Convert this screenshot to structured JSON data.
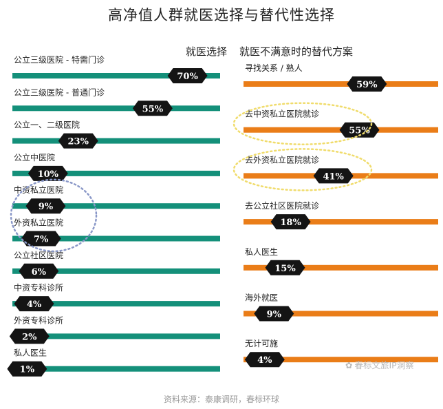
{
  "title": "高净值人群就医选择与替代性选择",
  "source": "资料来源：泰康调研，春标环球",
  "watermark": "春标文旅IP洞察",
  "colors": {
    "left_bar": "#14907a",
    "right_bar": "#ea7d18",
    "badge": "#141414",
    "badge_text": "#ffffff",
    "highlight_blue": "#8a98c8",
    "highlight_yellow": "#f0dc6c"
  },
  "chart_data": [
    {
      "type": "bar",
      "title": "就医选择",
      "categories": [
        "公立三级医院 - 特需门诊",
        "公立三级医院 - 普通门诊",
        "公立一、二级医院",
        "公立中医院",
        "中资私立医院",
        "外资私立医院",
        "公立社区医院",
        "中资专科诊所",
        "外资专科诊所",
        "私人医生"
      ],
      "values": [
        70,
        55,
        23,
        10,
        9,
        7,
        6,
        4,
        2,
        1
      ],
      "value_labels": [
        "70%",
        "55%",
        "23%",
        "10%",
        "9%",
        "7%",
        "6%",
        "4%",
        "2%",
        "1%"
      ],
      "highlighted": [
        "中资私立医院",
        "外资私立医院"
      ]
    },
    {
      "type": "bar",
      "title": "就医不满意时的替代方案",
      "categories": [
        "寻找关系 / 熟人",
        "去中资私立医院就诊",
        "去外资私立医院就诊",
        "去公立社区医院就诊",
        "私人医生",
        "海外就医",
        "无计可施"
      ],
      "values": [
        59,
        55,
        41,
        18,
        15,
        9,
        4
      ],
      "value_labels": [
        "59%",
        "55%",
        "41%",
        "18%",
        "15%",
        "9%",
        "4%"
      ],
      "highlighted": [
        "去中资私立医院就诊",
        "去外资私立医院就诊"
      ]
    }
  ]
}
